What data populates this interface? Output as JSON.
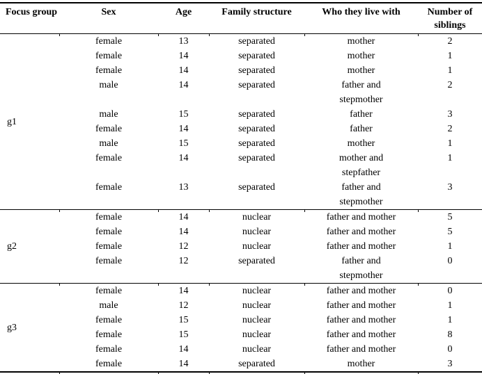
{
  "table": {
    "columns": [
      "Focus group",
      "Sex",
      "Age",
      "Family structure",
      "Who they live with",
      "Number of siblings"
    ],
    "groups": [
      {
        "label": "g1",
        "rows": [
          {
            "sex": "female",
            "age": "13",
            "family": "separated",
            "who": "mother",
            "siblings": "2"
          },
          {
            "sex": "female",
            "age": "14",
            "family": "separated",
            "who": "mother",
            "siblings": "1"
          },
          {
            "sex": "female",
            "age": "14",
            "family": "separated",
            "who": "mother",
            "siblings": "1"
          },
          {
            "sex": "male",
            "age": "14",
            "family": "separated",
            "who": "father and\nstepmother",
            "siblings": "2"
          },
          {
            "sex": "male",
            "age": "15",
            "family": "separated",
            "who": "father",
            "siblings": "3"
          },
          {
            "sex": "female",
            "age": "14",
            "family": "separated",
            "who": "father",
            "siblings": "2"
          },
          {
            "sex": "male",
            "age": "15",
            "family": "separated",
            "who": "mother",
            "siblings": "1"
          },
          {
            "sex": "female",
            "age": "14",
            "family": "separated",
            "who": "mother and\nstepfather",
            "siblings": "1"
          },
          {
            "sex": "female",
            "age": "13",
            "family": "separated",
            "who": "father and\nstepmother",
            "siblings": "3"
          }
        ]
      },
      {
        "label": "g2",
        "rows": [
          {
            "sex": "female",
            "age": "14",
            "family": "nuclear",
            "who": "father and mother",
            "siblings": "5"
          },
          {
            "sex": "female",
            "age": "14",
            "family": "nuclear",
            "who": "father and mother",
            "siblings": "5"
          },
          {
            "sex": "female",
            "age": "12",
            "family": "nuclear",
            "who": "father and mother",
            "siblings": "1"
          },
          {
            "sex": "female",
            "age": "12",
            "family": "separated",
            "who": "father and\nstepmother",
            "siblings": "0"
          }
        ]
      },
      {
        "label": "g3",
        "rows": [
          {
            "sex": "female",
            "age": "14",
            "family": "nuclear",
            "who": "father and mother",
            "siblings": "0"
          },
          {
            "sex": "male",
            "age": "12",
            "family": "nuclear",
            "who": "father and mother",
            "siblings": "1"
          },
          {
            "sex": "female",
            "age": "15",
            "family": "nuclear",
            "who": "father and mother",
            "siblings": "1"
          },
          {
            "sex": "female",
            "age": "15",
            "family": "nuclear",
            "who": "father and mother",
            "siblings": "8"
          },
          {
            "sex": "female",
            "age": "14",
            "family": "nuclear",
            "who": "father and mother",
            "siblings": "0"
          },
          {
            "sex": "female",
            "age": "14",
            "family": "separated",
            "who": "mother",
            "siblings": "3"
          }
        ]
      }
    ]
  }
}
